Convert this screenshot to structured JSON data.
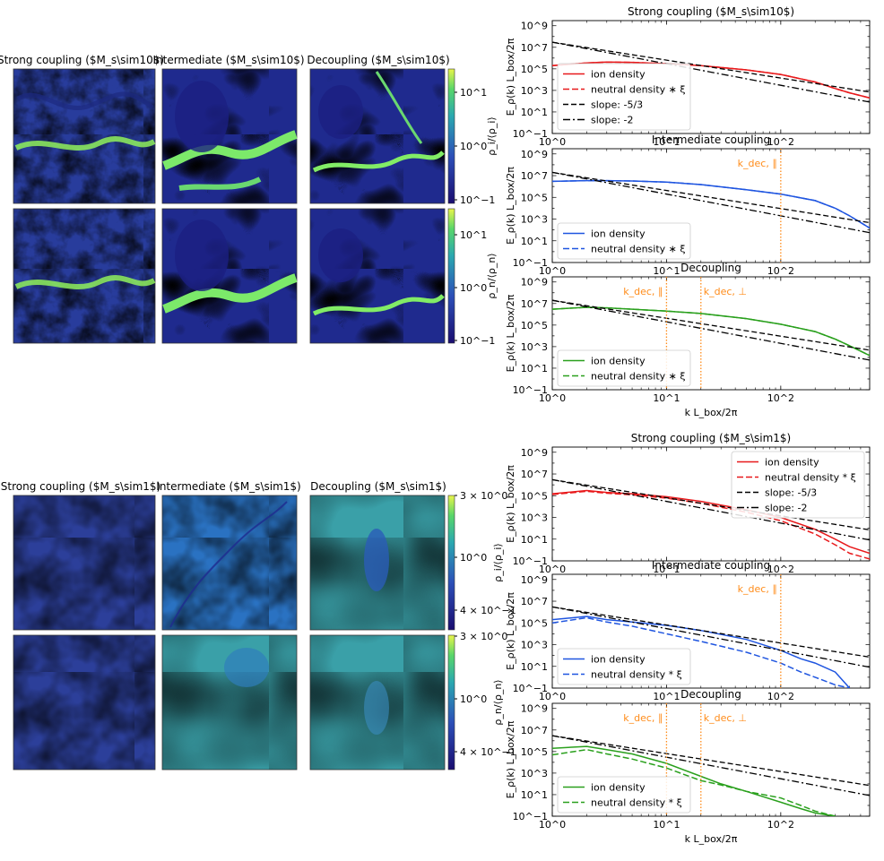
{
  "figure": {
    "panels": {
      "top": {
        "titles": [
          "Strong coupling ($M_s\\sim10$)",
          "Intermediate ($M_s\\sim10$)",
          "Decoupling ($M_s\\sim10$)"
        ],
        "cbar_ion_label": "ρ_i/⟨ρ_i⟩",
        "cbar_neutral_label": "ρ_n/⟨ρ_n⟩",
        "cbar_ticks": [
          "10^1",
          "10^0",
          "10^−1"
        ]
      },
      "bottom": {
        "titles": [
          "Strong coupling ($M_s\\sim1$)",
          "Intermediate ($M_s\\sim1$)",
          "Decoupling ($M_s\\sim1$)"
        ],
        "cbar_ion_label": "ρ_i/⟨ρ_i⟩",
        "cbar_neutral_label": "ρ_n/⟨ρ_n⟩",
        "cbar_ticks": [
          "3 × 10^0",
          "10^0",
          "4 × 10^−1"
        ]
      }
    }
  },
  "chart_data": [
    {
      "id": "spec-top-strong",
      "type": "line",
      "title": "Strong coupling ($M_s\\sim10$)",
      "xscale": "log",
      "yscale": "log",
      "xlim": [
        1,
        600
      ],
      "ylim": [
        0.1,
        3000000000
      ],
      "ylabel": "E_ρ(k) L_box/2π",
      "xlabel": "",
      "color": "#e8191b",
      "legend": [
        "ion density",
        "neutral density ∗ ξ",
        "slope: -5/3",
        "slope: -2"
      ],
      "legend_loc": "lower-left",
      "series": [
        {
          "name": "ion density",
          "style": "solid",
          "x": [
            1,
            2,
            3,
            5,
            10,
            20,
            50,
            100,
            200,
            300,
            400,
            600
          ],
          "y": [
            200000,
            350000,
            420000,
            400000,
            300000,
            200000,
            80000,
            30000,
            6000,
            1500,
            600,
            200
          ]
        },
        {
          "name": "neutral density ∗ ξ",
          "style": "dashed",
          "x": [
            1,
            2,
            3,
            5,
            10,
            20,
            50,
            100,
            200,
            300,
            400,
            600
          ],
          "y": [
            200000,
            350000,
            420000,
            400000,
            300000,
            200000,
            80000,
            30000,
            6000,
            1500,
            600,
            200
          ]
        },
        {
          "name": "slope: -5/3",
          "style": "dash-black",
          "x": [
            1,
            600
          ],
          "y": [
            30000000,
            703
          ]
        },
        {
          "name": "slope: -2",
          "style": "dashdot-black",
          "x": [
            1,
            600
          ],
          "y": [
            30000000,
            83
          ]
        }
      ],
      "vlines": []
    },
    {
      "id": "spec-top-inter",
      "type": "line",
      "title": "Intermediate  coupling",
      "xscale": "log",
      "yscale": "log",
      "xlim": [
        1,
        600
      ],
      "ylim": [
        0.1,
        3000000000
      ],
      "ylabel": "E_ρ(k) L_box/2π",
      "xlabel": "",
      "color": "#1f55e0",
      "legend": [
        "ion density",
        "neutral density ∗ ξ"
      ],
      "legend_loc": "lower-left",
      "series": [
        {
          "name": "ion density",
          "style": "solid",
          "x": [
            1,
            2,
            3,
            5,
            10,
            20,
            50,
            100,
            200,
            300,
            400,
            600
          ],
          "y": [
            3000000,
            3500000,
            3500000,
            3200000,
            2500000,
            1500000,
            500000,
            200000,
            50000,
            10000,
            2000,
            150
          ]
        },
        {
          "name": "neutral density ∗ ξ",
          "style": "dashed",
          "x": [
            1,
            2,
            3,
            5,
            10,
            20,
            50,
            100,
            200,
            300,
            400,
            600
          ],
          "y": [
            3000000,
            3500000,
            3500000,
            3200000,
            2500000,
            1500000,
            500000,
            200000,
            50000,
            10000,
            2000,
            150
          ]
        },
        {
          "name": "slope: -5/3",
          "style": "dash-black",
          "x": [
            1,
            600
          ],
          "y": [
            20000000,
            473
          ]
        },
        {
          "name": "slope: -2",
          "style": "dashdot-black",
          "x": [
            1,
            600
          ],
          "y": [
            20000000,
            56
          ]
        }
      ],
      "vlines": [
        {
          "x": 100,
          "label": "k_dec, ∥",
          "label_pos": "left"
        }
      ]
    },
    {
      "id": "spec-top-dec",
      "type": "line",
      "title": "Decoupling",
      "xscale": "log",
      "yscale": "log",
      "xlim": [
        1,
        600
      ],
      "ylim": [
        0.1,
        3000000000
      ],
      "ylabel": "E_ρ(k) L_box/2π",
      "xlabel": "k L_box/2π",
      "color": "#2aa01d",
      "legend": [
        "ion density",
        "neutral density ∗ ξ"
      ],
      "legend_loc": "lower-left",
      "series": [
        {
          "name": "ion density",
          "style": "solid",
          "x": [
            1,
            2,
            3,
            5,
            10,
            20,
            50,
            100,
            200,
            300,
            400,
            600
          ],
          "y": [
            3000000,
            4500000,
            4000000,
            3000000,
            2000000,
            1200000,
            400000,
            120000,
            25000,
            5000,
            1200,
            150
          ]
        },
        {
          "name": "neutral density ∗ ξ",
          "style": "dashed",
          "x": [
            1,
            2,
            3,
            5,
            10,
            20,
            50,
            100,
            200,
            300,
            400,
            600
          ],
          "y": [
            3000000,
            4500000,
            4000000,
            3000000,
            2000000,
            1200000,
            400000,
            120000,
            25000,
            5000,
            1200,
            150
          ]
        },
        {
          "name": "slope: -5/3",
          "style": "dash-black",
          "x": [
            1,
            600
          ],
          "y": [
            20000000,
            473
          ]
        },
        {
          "name": "slope: -2",
          "style": "dashdot-black",
          "x": [
            1,
            600
          ],
          "y": [
            20000000,
            56
          ]
        }
      ],
      "vlines": [
        {
          "x": 10,
          "label": "k_dec, ∥",
          "label_pos": "left"
        },
        {
          "x": 20,
          "label": "k_dec, ⊥",
          "label_pos": "right"
        }
      ]
    },
    {
      "id": "spec-bot-strong",
      "type": "line",
      "title": "Strong coupling ($M_s\\sim1$)",
      "xscale": "log",
      "yscale": "log",
      "xlim": [
        1,
        600
      ],
      "ylim": [
        0.1,
        3000000000
      ],
      "ylabel": "E_ρ(k) L_box/2π",
      "xlabel": "",
      "color": "#e8191b",
      "legend": [
        "ion density",
        "neutral density * ξ",
        "slope: -5/3",
        "slope: -2"
      ],
      "legend_loc": "upper-right",
      "series": [
        {
          "name": "ion density",
          "style": "solid",
          "x": [
            1,
            2,
            3,
            5,
            10,
            20,
            50,
            100,
            200,
            300,
            400,
            600
          ],
          "y": [
            150000,
            300000,
            200000,
            150000,
            80000,
            30000,
            5000,
            1000,
            80,
            10,
            2,
            0.5
          ]
        },
        {
          "name": "neutral density * ξ",
          "style": "dashed",
          "x": [
            1,
            2,
            3,
            5,
            10,
            20,
            50,
            100,
            200,
            300,
            400,
            600
          ],
          "y": [
            130000,
            250000,
            170000,
            120000,
            60000,
            20000,
            3000,
            500,
            30,
            3,
            0.5,
            0.15
          ]
        },
        {
          "name": "slope: -5/3",
          "style": "dash-black",
          "x": [
            1,
            600
          ],
          "y": [
            3000000,
            71
          ]
        },
        {
          "name": "slope: -2",
          "style": "dashdot-black",
          "x": [
            1,
            600
          ],
          "y": [
            3000000,
            8.3
          ]
        }
      ],
      "vlines": []
    },
    {
      "id": "spec-bot-inter",
      "type": "line",
      "title": "Intermediate  coupling",
      "xscale": "log",
      "yscale": "log",
      "xlim": [
        1,
        600
      ],
      "ylim": [
        0.1,
        3000000000
      ],
      "ylabel": "E_ρ(k) L_box/2π",
      "xlabel": "",
      "color": "#1f55e0",
      "legend": [
        "ion density",
        "neutral density * ξ"
      ],
      "legend_loc": "lower-left",
      "series": [
        {
          "name": "ion density",
          "style": "solid",
          "x": [
            1,
            2,
            3,
            5,
            10,
            20,
            50,
            100,
            150,
            200,
            300,
            400
          ],
          "y": [
            200000,
            400000,
            200000,
            120000,
            60000,
            20000,
            3000,
            300,
            50,
            20,
            3,
            0.1
          ]
        },
        {
          "name": "neutral density * ξ",
          "style": "dashed",
          "x": [
            1,
            2,
            3,
            5,
            10,
            20,
            50,
            100,
            150,
            200,
            300,
            400
          ],
          "y": [
            100000,
            300000,
            120000,
            50000,
            10000,
            2000,
            200,
            20,
            3,
            1,
            0.2,
            0.1
          ]
        },
        {
          "name": "slope: -5/3",
          "style": "dash-black",
          "x": [
            1,
            600
          ],
          "y": [
            3000000,
            71
          ]
        },
        {
          "name": "slope: -2",
          "style": "dashdot-black",
          "x": [
            1,
            600
          ],
          "y": [
            3000000,
            8.3
          ]
        }
      ],
      "vlines": [
        {
          "x": 100,
          "label": "k_dec, ∥",
          "label_pos": "left"
        }
      ]
    },
    {
      "id": "spec-bot-dec",
      "type": "line",
      "title": "Decoupling",
      "xscale": "log",
      "yscale": "log",
      "xlim": [
        1,
        600
      ],
      "ylim": [
        0.1,
        3000000000
      ],
      "ylabel": "E_ρ(k) L_box/2π",
      "xlabel": "k L_box/2π",
      "color": "#2aa01d",
      "legend": [
        "ion density",
        "neutral density * ξ"
      ],
      "legend_loc": "lower-left",
      "series": [
        {
          "name": "ion density",
          "style": "solid",
          "x": [
            1,
            2,
            3,
            5,
            10,
            20,
            30,
            50,
            100,
            150,
            200,
            300
          ],
          "y": [
            200000,
            300000,
            150000,
            60000,
            8000,
            500,
            100,
            20,
            2,
            0.5,
            0.2,
            0.1
          ]
        },
        {
          "name": "neutral density * ξ",
          "style": "dashed",
          "x": [
            1,
            2,
            3,
            5,
            10,
            20,
            30,
            50,
            100,
            150,
            200,
            300
          ],
          "y": [
            50000,
            150000,
            60000,
            20000,
            3000,
            200,
            80,
            20,
            5,
            1,
            0.3,
            0.1
          ]
        },
        {
          "name": "slope: -5/3",
          "style": "dash-black",
          "x": [
            1,
            600
          ],
          "y": [
            3000000,
            71
          ]
        },
        {
          "name": "slope: -2",
          "style": "dashdot-black",
          "x": [
            1,
            600
          ],
          "y": [
            3000000,
            8.3
          ]
        }
      ],
      "vlines": [
        {
          "x": 10,
          "label": "k_dec, ∥",
          "label_pos": "left"
        },
        {
          "x": 20,
          "label": "k_dec, ⊥",
          "label_pos": "right"
        }
      ]
    }
  ],
  "axis_ticks": {
    "x": [
      {
        "v": 1,
        "label": "10^0"
      },
      {
        "v": 10,
        "label": "10^1"
      },
      {
        "v": 100,
        "label": "10^2"
      }
    ],
    "y": [
      {
        "v": 0.1,
        "label": "10^−1"
      },
      {
        "v": 10,
        "label": "10^1"
      },
      {
        "v": 1000,
        "label": "10^3"
      },
      {
        "v": 100000,
        "label": "10^5"
      },
      {
        "v": 10000000,
        "label": "10^7"
      },
      {
        "v": 1000000000,
        "label": "10^9"
      }
    ]
  },
  "colors": {
    "viridis_dark": "#2a148c",
    "viridis_mid": "#2d6fc4",
    "viridis_bright": "#5ff07a",
    "vline": "#ff8c1a"
  }
}
